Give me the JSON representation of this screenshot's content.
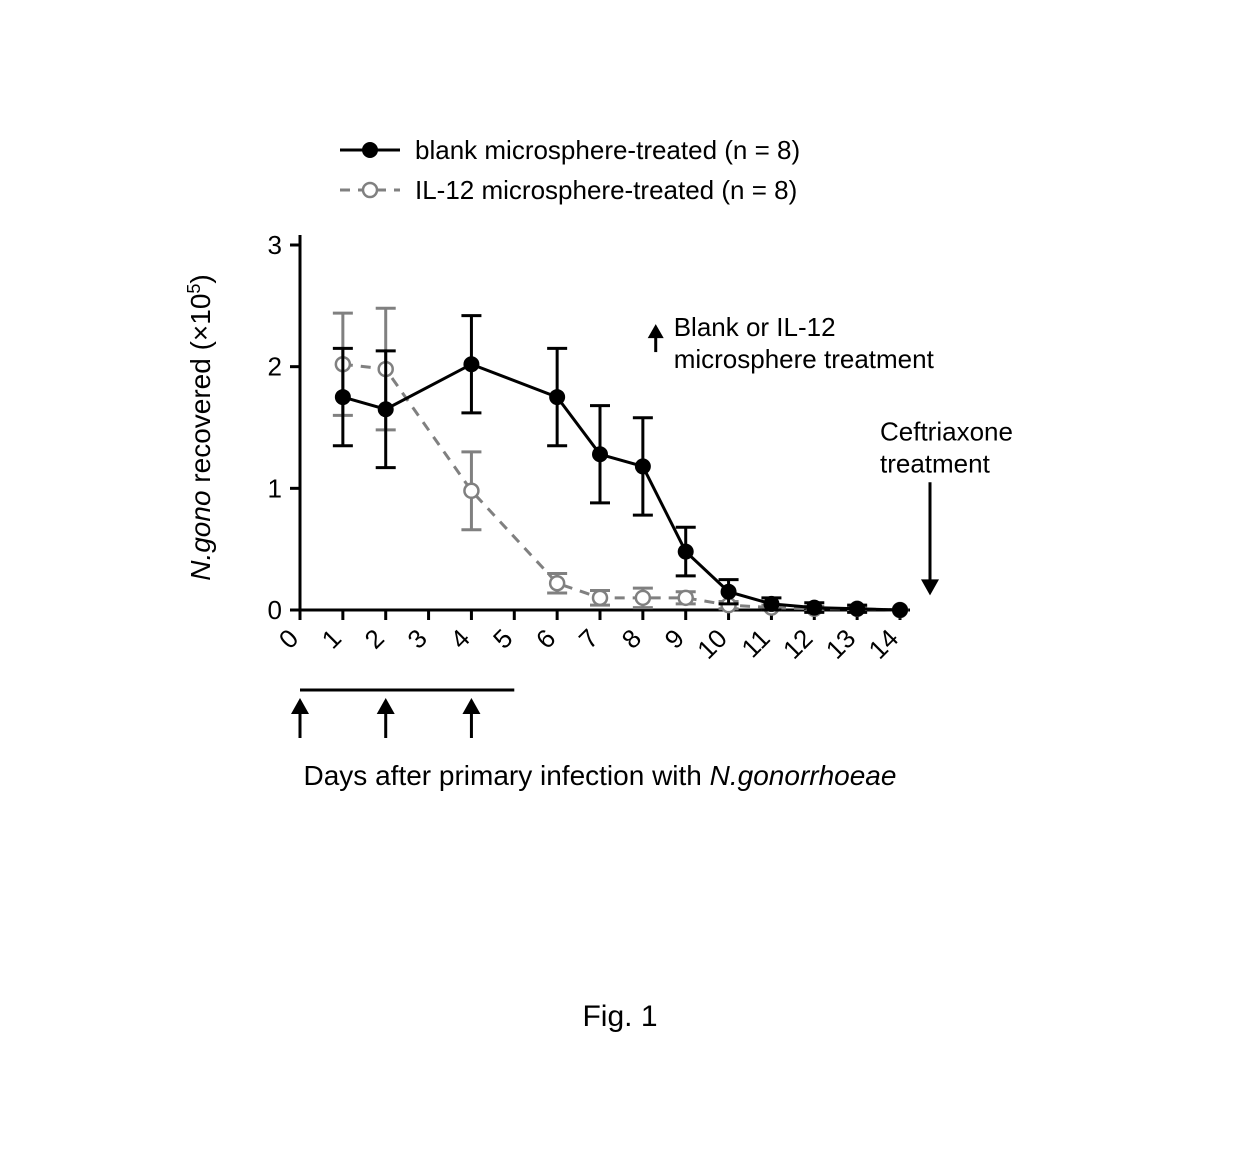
{
  "figure_label": "Fig. 1",
  "chart": {
    "type": "line-errorbar",
    "background_color": "#ffffff",
    "x": {
      "label": "Days after primary infection with N.gonorrhoeae",
      "label_italic_segment": "N.gonorrhoeae",
      "min": 0,
      "max": 14,
      "ticks": [
        0,
        1,
        2,
        3,
        4,
        5,
        6,
        7,
        8,
        9,
        10,
        11,
        12,
        13,
        14
      ]
    },
    "y": {
      "label_line1_italic": "N.gono",
      "label_line1_rest": " recovered (×10",
      "label_superscript": "5",
      "label_line1_end": ")",
      "min": 0,
      "max": 3,
      "ticks": [
        0,
        1,
        2,
        3
      ]
    },
    "legend": {
      "items": [
        {
          "key": "blank",
          "label": "blank microsphere-treated (n = 8)",
          "color": "#000000",
          "marker_fill": "#000000",
          "dash": "solid"
        },
        {
          "key": "il12",
          "label": "IL-12 microsphere-treated (n = 8)",
          "color": "#808080",
          "marker_fill": "#ffffff",
          "dash": "dashed"
        }
      ]
    },
    "annotations": {
      "treatment_arrow_label_line1": "Blank or IL-12",
      "treatment_arrow_label_line2": "microsphere treatment",
      "ceftriaxone_line1": "Ceftriaxone",
      "ceftriaxone_line2": "treatment"
    },
    "treatment_days": [
      0,
      2,
      4
    ],
    "treatment_bar_end_day": 5,
    "ceftriaxone_day": 14,
    "series": {
      "blank": {
        "x": [
          1,
          2,
          4,
          6,
          7,
          8,
          9,
          10,
          11,
          12,
          13,
          14
        ],
        "y": [
          1.75,
          1.65,
          2.02,
          1.75,
          1.28,
          1.18,
          0.48,
          0.15,
          0.05,
          0.02,
          0.01,
          0.0
        ],
        "err": [
          0.4,
          0.48,
          0.4,
          0.4,
          0.4,
          0.4,
          0.2,
          0.1,
          0.05,
          0.04,
          0.03,
          0.0
        ]
      },
      "il12": {
        "x": [
          1,
          2,
          4,
          6,
          7,
          8,
          9,
          10,
          11,
          12,
          13,
          14
        ],
        "y": [
          2.02,
          1.98,
          0.98,
          0.22,
          0.1,
          0.1,
          0.1,
          0.04,
          0.02,
          0.01,
          0.01,
          0.0
        ],
        "err": [
          0.42,
          0.5,
          0.32,
          0.08,
          0.06,
          0.08,
          0.05,
          0.03,
          0.02,
          0.02,
          0.02,
          0.0
        ]
      }
    },
    "styling": {
      "marker_radius": 7,
      "errbar_cap": 10,
      "axis_color": "#000000",
      "blank_color": "#000000",
      "il12_color": "#808080",
      "line_width": 3,
      "title_fontsize": 28,
      "tick_fontsize": 26,
      "legend_fontsize": 26
    }
  }
}
